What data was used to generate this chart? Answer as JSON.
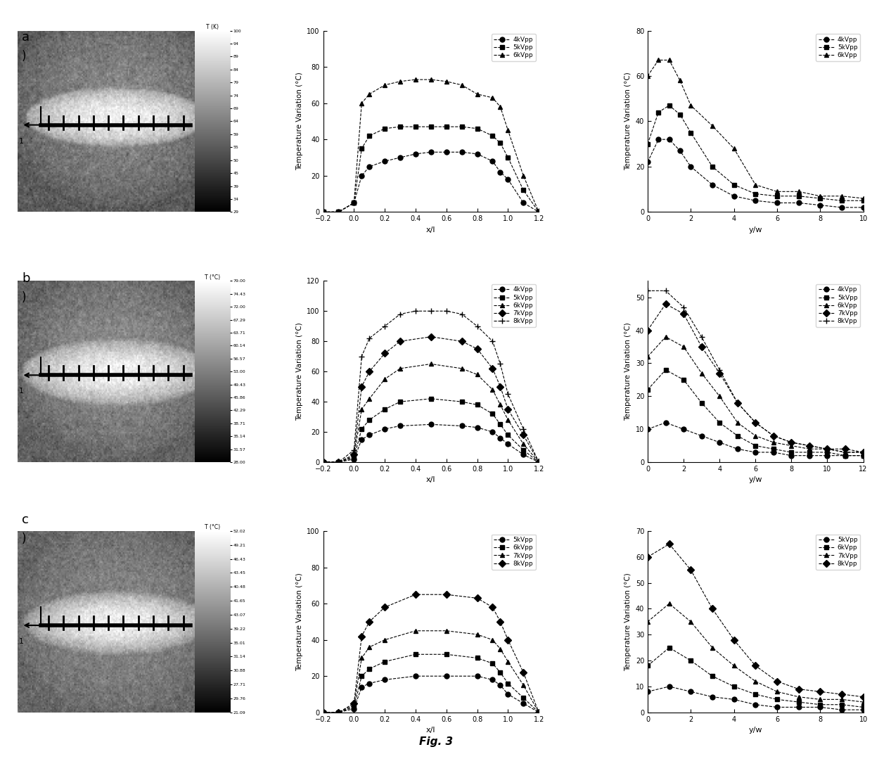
{
  "fig_title": "Fig. 3",
  "rows": [
    "a",
    "b",
    "c"
  ],
  "row_a": {
    "colorbar_label": "T (K)",
    "colorbar_ticks": [
      "100",
      "94",
      "89",
      "84",
      "79",
      "74",
      "69",
      "64",
      "59",
      "55",
      "50",
      "45",
      "39",
      "34",
      "29"
    ],
    "xl_plot": {
      "ylabel": "Temperature Variation (°C)",
      "xlabel": "x/l",
      "ylim": [
        0,
        100
      ],
      "xlim": [
        -0.2,
        1.2
      ],
      "yticks": [
        0,
        20,
        40,
        60,
        80,
        100
      ],
      "xticks": [
        -0.2,
        0,
        0.2,
        0.4,
        0.6,
        0.8,
        1.0,
        1.2
      ],
      "series": [
        {
          "label": "4kVpp",
          "marker": "o",
          "x": [
            -0.2,
            -0.1,
            0.0,
            0.05,
            0.1,
            0.2,
            0.3,
            0.4,
            0.5,
            0.6,
            0.7,
            0.8,
            0.9,
            0.95,
            1.0,
            1.1,
            1.2
          ],
          "y": [
            0,
            0,
            5,
            20,
            25,
            28,
            30,
            32,
            33,
            33,
            33,
            32,
            28,
            22,
            18,
            5,
            0
          ]
        },
        {
          "label": "5kVpp",
          "marker": "s",
          "x": [
            -0.2,
            -0.1,
            0.0,
            0.05,
            0.1,
            0.2,
            0.3,
            0.4,
            0.5,
            0.6,
            0.7,
            0.8,
            0.9,
            0.95,
            1.0,
            1.1,
            1.2
          ],
          "y": [
            0,
            0,
            5,
            35,
            42,
            46,
            47,
            47,
            47,
            47,
            47,
            46,
            42,
            38,
            30,
            12,
            0
          ]
        },
        {
          "label": "6kVpp",
          "marker": "^",
          "x": [
            -0.2,
            -0.1,
            0.0,
            0.05,
            0.1,
            0.2,
            0.3,
            0.4,
            0.5,
            0.6,
            0.7,
            0.8,
            0.9,
            0.95,
            1.0,
            1.1,
            1.2
          ],
          "y": [
            0,
            0,
            5,
            60,
            65,
            70,
            72,
            73,
            73,
            72,
            70,
            65,
            63,
            58,
            45,
            20,
            0
          ]
        }
      ]
    },
    "yw_plot": {
      "ylabel": "Temperature Variation (°C)",
      "xlabel": "y/w",
      "ylim": [
        0,
        80
      ],
      "xlim": [
        0,
        10
      ],
      "yticks": [
        0,
        20,
        40,
        60,
        80
      ],
      "xticks": [
        0,
        2,
        4,
        6,
        8,
        10
      ],
      "series": [
        {
          "label": "4kVpp",
          "marker": "o",
          "x": [
            0,
            0.5,
            1.0,
            1.5,
            2.0,
            3.0,
            4.0,
            5.0,
            6.0,
            7.0,
            8.0,
            9.0,
            10.0
          ],
          "y": [
            22,
            32,
            32,
            27,
            20,
            12,
            7,
            5,
            4,
            4,
            3,
            2,
            2
          ]
        },
        {
          "label": "5kVpp",
          "marker": "s",
          "x": [
            0,
            0.5,
            1.0,
            1.5,
            2.0,
            3.0,
            4.0,
            5.0,
            6.0,
            7.0,
            8.0,
            9.0,
            10.0
          ],
          "y": [
            30,
            44,
            47,
            43,
            35,
            20,
            12,
            8,
            7,
            7,
            6,
            5,
            5
          ]
        },
        {
          "label": "6kVpp",
          "marker": "^",
          "x": [
            0,
            0.5,
            1.0,
            1.5,
            2.0,
            3.0,
            4.0,
            5.0,
            6.0,
            7.0,
            8.0,
            9.0,
            10.0
          ],
          "y": [
            60,
            67,
            67,
            58,
            47,
            38,
            28,
            12,
            9,
            9,
            7,
            7,
            6
          ]
        }
      ]
    }
  },
  "row_b": {
    "colorbar_label": "T (°C)",
    "colorbar_ticks": [
      "79.00",
      "74.43",
      "72.00",
      "67.29",
      "63.71",
      "60.14",
      "56.57",
      "53.00",
      "49.43",
      "45.86",
      "42.29",
      "38.71",
      "35.14",
      "31.57",
      "28.00"
    ],
    "xl_plot": {
      "ylabel": "Temperature Variation (°C)",
      "xlabel": "x/l",
      "ylim": [
        0,
        120
      ],
      "xlim": [
        -0.2,
        1.2
      ],
      "yticks": [
        0,
        20,
        40,
        60,
        80,
        100,
        120
      ],
      "xticks": [
        -0.2,
        0,
        0.2,
        0.4,
        0.6,
        0.8,
        1.0,
        1.2
      ],
      "series": [
        {
          "label": "4kVpp",
          "marker": "o",
          "x": [
            -0.2,
            -0.1,
            0.0,
            0.05,
            0.1,
            0.2,
            0.3,
            0.5,
            0.7,
            0.8,
            0.9,
            0.95,
            1.0,
            1.1,
            1.2
          ],
          "y": [
            0,
            0,
            2,
            15,
            18,
            22,
            24,
            25,
            24,
            23,
            20,
            16,
            12,
            5,
            0
          ]
        },
        {
          "label": "5kVpp",
          "marker": "s",
          "x": [
            -0.2,
            -0.1,
            0.0,
            0.05,
            0.1,
            0.2,
            0.3,
            0.5,
            0.7,
            0.8,
            0.9,
            0.95,
            1.0,
            1.1,
            1.2
          ],
          "y": [
            0,
            0,
            3,
            22,
            28,
            35,
            40,
            42,
            40,
            38,
            32,
            25,
            18,
            8,
            0
          ]
        },
        {
          "label": "6kVpp",
          "marker": "^",
          "x": [
            -0.2,
            -0.1,
            0.0,
            0.05,
            0.1,
            0.2,
            0.3,
            0.5,
            0.7,
            0.8,
            0.9,
            0.95,
            1.0,
            1.1,
            1.2
          ],
          "y": [
            0,
            0,
            4,
            35,
            42,
            55,
            62,
            65,
            62,
            58,
            48,
            38,
            28,
            12,
            0
          ]
        },
        {
          "label": "7kVpp",
          "marker": "D",
          "x": [
            -0.2,
            -0.1,
            0.0,
            0.05,
            0.1,
            0.2,
            0.3,
            0.5,
            0.7,
            0.8,
            0.9,
            0.95,
            1.0,
            1.1,
            1.2
          ],
          "y": [
            0,
            0,
            5,
            50,
            60,
            72,
            80,
            83,
            80,
            75,
            62,
            50,
            35,
            18,
            0
          ]
        },
        {
          "label": "8kVpp",
          "marker": "+",
          "x": [
            -0.2,
            -0.1,
            0.0,
            0.05,
            0.1,
            0.2,
            0.3,
            0.4,
            0.5,
            0.6,
            0.7,
            0.8,
            0.9,
            0.95,
            1.0,
            1.1,
            1.2
          ],
          "y": [
            0,
            0,
            8,
            70,
            82,
            90,
            98,
            100,
            100,
            100,
            98,
            90,
            80,
            65,
            45,
            22,
            0
          ]
        }
      ]
    },
    "yw_plot": {
      "ylabel": "Temperature Variation (°C)",
      "xlabel": "y/w",
      "ylim": [
        0,
        55
      ],
      "xlim": [
        0,
        12
      ],
      "yticks": [
        0,
        10,
        20,
        30,
        40,
        50
      ],
      "xticks": [
        0,
        2,
        4,
        6,
        8,
        10,
        12
      ],
      "series": [
        {
          "label": "4kVpp",
          "marker": "o",
          "x": [
            0,
            1,
            2,
            3,
            4,
            5,
            6,
            7,
            8,
            9,
            10,
            11,
            12
          ],
          "y": [
            10,
            12,
            10,
            8,
            6,
            4,
            3,
            3,
            2,
            2,
            2,
            2,
            2
          ]
        },
        {
          "label": "5kVpp",
          "marker": "s",
          "x": [
            0,
            1,
            2,
            3,
            4,
            5,
            6,
            7,
            8,
            9,
            10,
            11,
            12
          ],
          "y": [
            22,
            28,
            25,
            18,
            12,
            8,
            5,
            4,
            3,
            3,
            3,
            2,
            2
          ]
        },
        {
          "label": "6kVpp",
          "marker": "^",
          "x": [
            0,
            1,
            2,
            3,
            4,
            5,
            6,
            7,
            8,
            9,
            10,
            11,
            12
          ],
          "y": [
            32,
            38,
            35,
            27,
            20,
            12,
            8,
            6,
            5,
            4,
            4,
            3,
            3
          ]
        },
        {
          "label": "7kVpp",
          "marker": "D",
          "x": [
            0,
            1,
            2,
            3,
            4,
            5,
            6,
            7,
            8,
            9,
            10,
            11,
            12
          ],
          "y": [
            40,
            48,
            45,
            35,
            27,
            18,
            12,
            8,
            6,
            5,
            4,
            4,
            3
          ]
        },
        {
          "label": "8kVpp",
          "marker": "+",
          "x": [
            0,
            1,
            2,
            3,
            4,
            5,
            6,
            7,
            8,
            9,
            10,
            11,
            12
          ],
          "y": [
            52,
            52,
            47,
            38,
            28,
            18,
            12,
            8,
            6,
            5,
            4,
            3,
            3
          ]
        }
      ]
    }
  },
  "row_c": {
    "colorbar_label": "T (°C)",
    "colorbar_ticks": [
      "52.02",
      "49.21",
      "46.43",
      "43.45",
      "40.48",
      "41.65",
      "43.07",
      "39.22",
      "35.01",
      "31.14",
      "30.88",
      "27.71",
      "29.76",
      "21.09"
    ],
    "xl_plot": {
      "ylabel": "Temperature Variation (°C)",
      "xlabel": "x/l",
      "ylim": [
        0,
        100
      ],
      "xlim": [
        -0.2,
        1.2
      ],
      "yticks": [
        0,
        20,
        40,
        60,
        80,
        100
      ],
      "xticks": [
        -0.2,
        0,
        0.2,
        0.4,
        0.6,
        0.8,
        1.0,
        1.2
      ],
      "series": [
        {
          "label": "5kVpp",
          "marker": "o",
          "x": [
            -0.2,
            -0.1,
            0.0,
            0.05,
            0.1,
            0.2,
            0.4,
            0.6,
            0.8,
            0.9,
            0.95,
            1.0,
            1.1,
            1.2
          ],
          "y": [
            0,
            0,
            2,
            14,
            16,
            18,
            20,
            20,
            20,
            18,
            15,
            10,
            5,
            0
          ]
        },
        {
          "label": "6kVpp",
          "marker": "s",
          "x": [
            -0.2,
            -0.1,
            0.0,
            0.05,
            0.1,
            0.2,
            0.4,
            0.6,
            0.8,
            0.9,
            0.95,
            1.0,
            1.1,
            1.2
          ],
          "y": [
            0,
            0,
            3,
            20,
            24,
            28,
            32,
            32,
            30,
            27,
            22,
            16,
            8,
            0
          ]
        },
        {
          "label": "7kVpp",
          "marker": "^",
          "x": [
            -0.2,
            -0.1,
            0.0,
            0.05,
            0.1,
            0.2,
            0.4,
            0.6,
            0.8,
            0.9,
            0.95,
            1.0,
            1.1,
            1.2
          ],
          "y": [
            0,
            0,
            4,
            30,
            36,
            40,
            45,
            45,
            43,
            40,
            35,
            28,
            15,
            0
          ]
        },
        {
          "label": "8kVpp",
          "marker": "D",
          "x": [
            -0.2,
            -0.1,
            0.0,
            0.05,
            0.1,
            0.2,
            0.4,
            0.6,
            0.8,
            0.9,
            0.95,
            1.0,
            1.1,
            1.2
          ],
          "y": [
            0,
            0,
            5,
            42,
            50,
            58,
            65,
            65,
            63,
            58,
            50,
            40,
            22,
            0
          ]
        }
      ]
    },
    "yw_plot": {
      "ylabel": "Temperature Variation (°C)",
      "xlabel": "y/w",
      "ylim": [
        0,
        70
      ],
      "xlim": [
        0,
        10
      ],
      "yticks": [
        0,
        10,
        20,
        30,
        40,
        50,
        60,
        70
      ],
      "xticks": [
        0,
        2,
        4,
        6,
        8,
        10
      ],
      "series": [
        {
          "label": "5kVpp",
          "marker": "o",
          "x": [
            0,
            1,
            2,
            3,
            4,
            5,
            6,
            7,
            8,
            9,
            10
          ],
          "y": [
            8,
            10,
            8,
            6,
            5,
            3,
            2,
            2,
            2,
            1,
            1
          ]
        },
        {
          "label": "6kVpp",
          "marker": "s",
          "x": [
            0,
            1,
            2,
            3,
            4,
            5,
            6,
            7,
            8,
            9,
            10
          ],
          "y": [
            18,
            25,
            20,
            14,
            10,
            7,
            5,
            4,
            3,
            3,
            2
          ]
        },
        {
          "label": "7kVpp",
          "marker": "^",
          "x": [
            0,
            1,
            2,
            3,
            4,
            5,
            6,
            7,
            8,
            9,
            10
          ],
          "y": [
            35,
            42,
            35,
            25,
            18,
            12,
            8,
            6,
            5,
            5,
            4
          ]
        },
        {
          "label": "8kVpp",
          "marker": "D",
          "x": [
            0,
            1,
            2,
            3,
            4,
            5,
            6,
            7,
            8,
            9,
            10
          ],
          "y": [
            60,
            65,
            55,
            40,
            28,
            18,
            12,
            9,
            8,
            7,
            6
          ]
        }
      ]
    }
  }
}
